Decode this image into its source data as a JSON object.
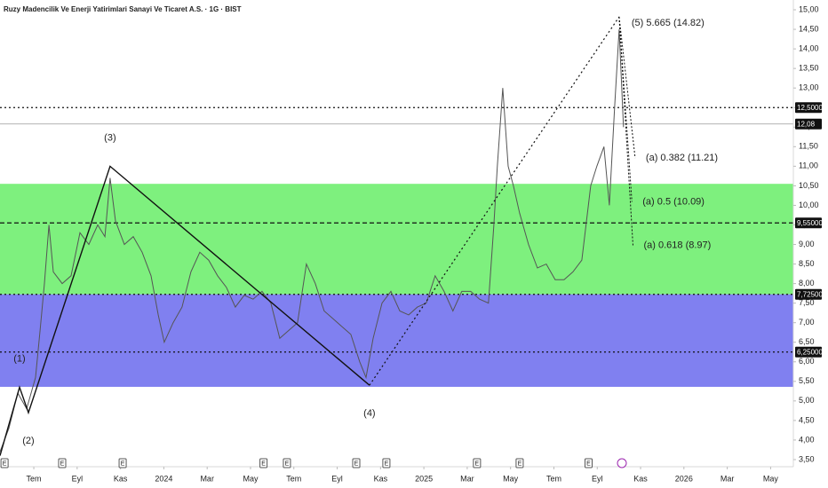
{
  "chart_data": {
    "type": "line",
    "title": "Ruzy Madencilik Ve Enerji Yatirimlari Sanayi Ve Ticaret A.S. · 1G · BIST",
    "x": [
      -1.56,
      -1.15,
      -0.74,
      -0.33,
      0.08,
      0.29,
      0.49,
      0.7,
      0.9,
      1.31,
      1.72,
      2.13,
      2.54,
      2.95,
      3.28,
      3.52,
      3.77,
      4.18,
      4.59,
      5.0,
      5.41,
      5.74,
      6.02,
      6.43,
      6.84,
      7.25,
      7.66,
      8.07,
      8.48,
      8.89,
      9.3,
      9.71,
      10.12,
      10.53,
      10.94,
      11.35,
      11.76,
      12.17,
      12.58,
      12.99,
      13.4,
      13.81,
      14.22,
      14.63,
      15.04,
      15.33,
      15.66,
      16.07,
      16.48,
      16.89,
      17.3,
      17.7,
      18.11,
      18.52,
      18.93,
      19.34,
      19.75,
      20.16,
      20.57,
      20.98,
      21.23,
      21.39,
      21.64,
      21.89,
      22.13,
      22.42,
      22.83,
      23.24,
      23.65,
      24.06,
      24.47,
      24.88,
      25.29,
      25.7,
      25.98,
      26.31,
      26.56,
      26.8,
      27.01,
      27.21
    ],
    "values": [
      3.7,
      4.3,
      5.2,
      4.8,
      5.6,
      6.8,
      8.0,
      9.5,
      8.3,
      8.0,
      8.2,
      9.3,
      9.0,
      9.5,
      9.2,
      10.7,
      9.6,
      9.0,
      9.2,
      8.8,
      8.2,
      7.2,
      6.5,
      7.0,
      7.4,
      8.3,
      8.8,
      8.6,
      8.2,
      7.9,
      7.4,
      7.7,
      7.6,
      7.8,
      7.5,
      6.6,
      6.8,
      7.0,
      8.5,
      8.0,
      7.3,
      7.1,
      6.9,
      6.7,
      6.0,
      5.6,
      6.6,
      7.5,
      7.8,
      7.3,
      7.2,
      7.4,
      7.5,
      8.2,
      7.8,
      7.3,
      7.8,
      7.8,
      7.6,
      7.5,
      9.5,
      11.0,
      13.0,
      11.0,
      10.5,
      9.8,
      9.0,
      8.4,
      8.5,
      8.1,
      8.1,
      8.3,
      8.6,
      10.5,
      11.0,
      11.5,
      10.0,
      12.5,
      14.5,
      12.0
    ],
    "color": "#555555",
    "xlim": [
      -1.56,
      35.05
    ],
    "ylim": [
      3.25,
      15.25
    ],
    "xticks": [
      {
        "value": 0,
        "label": "Tem"
      },
      {
        "value": 2,
        "label": "Eyl"
      },
      {
        "value": 4,
        "label": "Kas"
      },
      {
        "value": 6,
        "label": "2024"
      },
      {
        "value": 8,
        "label": "Mar"
      },
      {
        "value": 10,
        "label": "May"
      },
      {
        "value": 12,
        "label": "Tem"
      },
      {
        "value": 14,
        "label": "Eyl"
      },
      {
        "value": 16,
        "label": "Kas"
      },
      {
        "value": 18,
        "label": "2025"
      },
      {
        "value": 20,
        "label": "Mar"
      },
      {
        "value": 22,
        "label": "May"
      },
      {
        "value": 24,
        "label": "Tem"
      },
      {
        "value": 26,
        "label": "Eyl"
      },
      {
        "value": 28,
        "label": "Kas"
      },
      {
        "value": 30,
        "label": "2026"
      },
      {
        "value": 32,
        "label": "Mar"
      },
      {
        "value": 34,
        "label": "May"
      }
    ],
    "yticks": [
      {
        "value": 3.5,
        "label": "3,50"
      },
      {
        "value": 4,
        "label": "4,00"
      },
      {
        "value": 4.5,
        "label": "4,50"
      },
      {
        "value": 5,
        "label": "5,00"
      },
      {
        "value": 5.5,
        "label": "5,50"
      },
      {
        "value": 6,
        "label": "6,00"
      },
      {
        "value": 6.5,
        "label": "6,50"
      },
      {
        "value": 7,
        "label": "7,00"
      },
      {
        "value": 7.5,
        "label": "7,50"
      },
      {
        "value": 8,
        "label": "8,00"
      },
      {
        "value": 8.5,
        "label": "8,50"
      },
      {
        "value": 9,
        "label": "9,00"
      },
      {
        "value": 9.5,
        "label": "9,50"
      },
      {
        "value": 10,
        "label": "10,00"
      },
      {
        "value": 10.5,
        "label": "10,50"
      },
      {
        "value": 11,
        "label": "11,00"
      },
      {
        "value": 11.5,
        "label": "11,50"
      },
      {
        "value": 12,
        "label": "12,00"
      },
      {
        "value": 12.5,
        "label": "12,50"
      },
      {
        "value": 13,
        "label": "13,00"
      },
      {
        "value": 13.5,
        "label": "13,50"
      },
      {
        "value": 14,
        "label": "14,00"
      },
      {
        "value": 14.5,
        "label": "14,50"
      },
      {
        "value": 15,
        "label": "15,00"
      }
    ],
    "bands": [
      {
        "from": 7.725,
        "to": 10.55,
        "color": "#7ef07e"
      },
      {
        "from": 5.36,
        "to": 7.725,
        "color": "#8080f0"
      }
    ],
    "levels": [
      {
        "value": 12.5,
        "label": "12,50000",
        "style": "dotted"
      },
      {
        "value": 12.08,
        "label": "12,08",
        "style": "solid"
      },
      {
        "value": 9.55,
        "label": "9,55000",
        "style": "dashed"
      },
      {
        "value": 7.725,
        "label": "7,72500",
        "style": "dotted"
      },
      {
        "value": 6.25,
        "label": "6,25000",
        "style": "dotted"
      }
    ],
    "wave": [
      {
        "x": -1.56,
        "y": 3.6
      },
      {
        "x": -0.66,
        "y": 5.35,
        "label": "(1)"
      },
      {
        "x": -0.25,
        "y": 4.7,
        "label": "(2)"
      },
      {
        "x": 3.52,
        "y": 11.0,
        "label": "(3)"
      },
      {
        "x": 15.49,
        "y": 5.4,
        "label": "(4)"
      },
      {
        "x": 27.01,
        "y": 14.82,
        "label": "(5) 5.665 (14.82)"
      }
    ],
    "wave_dotted_from": 4,
    "retracements": [
      {
        "x": 27.75,
        "y": 11.21,
        "label": "(a) 0.382 (11.21)"
      },
      {
        "x": 27.6,
        "y": 10.09,
        "label": "(a) 0.5 (10.09)"
      },
      {
        "x": 27.65,
        "y": 8.97,
        "label": "(a) 0.618 (8.97)"
      }
    ],
    "events": [
      {
        "x": -1.35,
        "label": "E"
      },
      {
        "x": 1.31,
        "label": "E"
      },
      {
        "x": 4.1,
        "label": "E"
      },
      {
        "x": 10.6,
        "label": "E"
      },
      {
        "x": 11.68,
        "label": "E"
      },
      {
        "x": 14.88,
        "label": "E"
      },
      {
        "x": 16.27,
        "label": "E"
      },
      {
        "x": 20.45,
        "label": "E"
      },
      {
        "x": 22.42,
        "label": "E"
      },
      {
        "x": 25.6,
        "label": "E"
      }
    ]
  }
}
